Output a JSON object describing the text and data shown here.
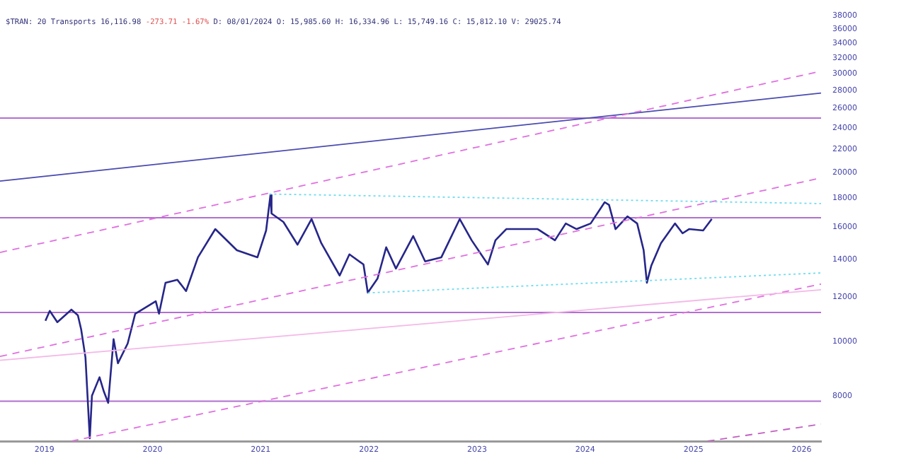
{
  "chart_data": {
    "type": "line",
    "title": "$TRAN: 20 Transports 16,116.98",
    "subtitle": "-273.71 -1.67%",
    "annotations": [
      "D: 08/01/2024 O: 15,985.60 H: 16,334.96 L: 15,749.16 C: 15,812.10 V: 29025.74"
    ],
    "log": "y",
    "legend": false,
    "grid": false,
    "marker": "none",
    "xlim": [
      2018.59,
      2026.18
    ],
    "xticks": [
      2019,
      2020,
      2021,
      2022,
      2023,
      2024,
      2025,
      2026
    ],
    "ylim": [
      6640,
      38000
    ],
    "yticks": [
      8000,
      10000,
      12000,
      14000,
      16000,
      18000,
      20000,
      22000,
      24000,
      26000,
      28000,
      30000,
      32000,
      34000,
      36000,
      38000
    ],
    "series": [
      {
        "color": "#26268a",
        "line_style": "solid",
        "x": [
          2019.01,
          2019.05,
          2019.12,
          2019.25,
          2019.31,
          2019.34,
          2019.38,
          2019.42,
          2019.44,
          2019.51,
          2019.55,
          2019.59,
          2019.64,
          2019.68,
          2019.77,
          2019.84,
          2020.03,
          2020.06,
          2020.12,
          2020.23,
          2020.31,
          2020.42,
          2020.58,
          2020.78,
          2020.97,
          2021.05,
          2021.09,
          2021.1,
          2021.21,
          2021.34,
          2021.47,
          2021.56,
          2021.73,
          2021.82,
          2021.95,
          2021.99,
          2022.08,
          2022.16,
          2022.25,
          2022.41,
          2022.52,
          2022.67,
          2022.84,
          2022.95,
          2023.1,
          2023.17,
          2023.27,
          2023.43,
          2023.56,
          2023.72,
          2023.82,
          2023.92,
          2024.05,
          2024.18,
          2024.22,
          2024.28,
          2024.39,
          2024.48,
          2024.54,
          2024.57,
          2024.61,
          2024.7,
          2024.83,
          2024.9,
          2024.96,
          2025.09,
          2025.17
        ],
        "values": [
          10880,
          11330,
          10820,
          11390,
          11130,
          10510,
          9360,
          6720,
          8000,
          8630,
          8140,
          7770,
          10090,
          9140,
          9910,
          11200,
          11790,
          11200,
          12720,
          12870,
          12290,
          14120,
          15850,
          14530,
          14120,
          15760,
          18220,
          16900,
          16320,
          14870,
          16520,
          14960,
          13100,
          14290,
          13710,
          12210,
          12940,
          14710,
          13480,
          15400,
          13880,
          14120,
          16520,
          15140,
          13710,
          15140,
          15850,
          15850,
          15850,
          15140,
          16220,
          15850,
          16220,
          17700,
          17500,
          15850,
          16700,
          16220,
          14530,
          12720,
          13630,
          14960,
          16220,
          15580,
          15850,
          15760,
          16520
        ]
      },
      {
        "type": "line",
        "color": "#4b4bb0",
        "line_style": "solid",
        "x": [
          2018.59,
          2026.18
        ],
        "values": [
          19300,
          27700
        ]
      },
      {
        "type": "line",
        "color": "#e070e0",
        "line_style": "dashed",
        "x": [
          2018.59,
          2026.18
        ],
        "values": [
          14400,
          30300
        ]
      },
      {
        "type": "line",
        "color": "#e070e0",
        "line_style": "dashed",
        "x": [
          2018.59,
          2026.18
        ],
        "values": [
          9400,
          19550
        ]
      },
      {
        "type": "line",
        "color": "#e070e0",
        "line_style": "dashed",
        "x": [
          2019.25,
          2026.18
        ],
        "values": [
          6640,
          12650
        ]
      },
      {
        "type": "line",
        "color": "#c060c0",
        "line_style": "dashed",
        "x": [
          2025.13,
          2026.18
        ],
        "values": [
          6640,
          7120
        ]
      },
      {
        "type": "line",
        "color": "#f4b8e8",
        "line_style": "solid",
        "x": [
          2018.59,
          2026.18
        ],
        "values": [
          9250,
          12360
        ]
      },
      {
        "type": "line",
        "color": "#70dcef",
        "line_style": "dotted",
        "x": [
          2021.08,
          2026.18
        ],
        "values": [
          18300,
          17600
        ]
      },
      {
        "type": "line",
        "color": "#70dcef",
        "line_style": "dotted",
        "x": [
          2021.99,
          2026.18
        ],
        "values": [
          12200,
          13240
        ]
      }
    ],
    "ref_lines": [
      {
        "axis": "y",
        "value": 25000,
        "color": "#b070d0"
      },
      {
        "axis": "y",
        "value": 16600,
        "color": "#b070d0"
      },
      {
        "axis": "y",
        "value": 11260,
        "color": "#b070d0"
      },
      {
        "axis": "y",
        "value": 7820,
        "color": "#b070d0"
      }
    ]
  }
}
